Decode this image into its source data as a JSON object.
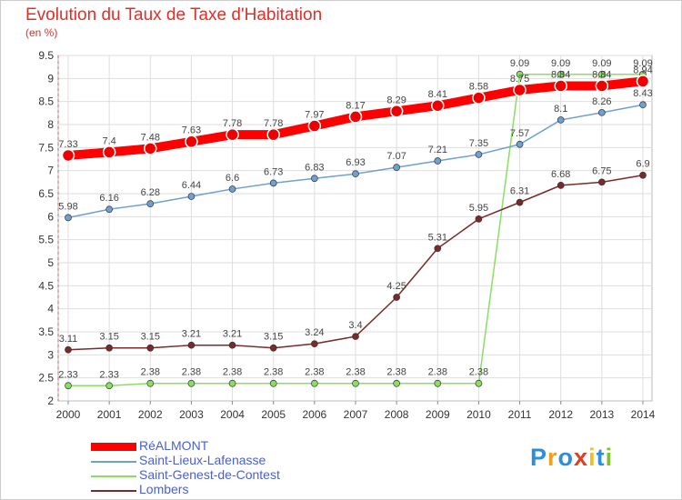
{
  "header": {
    "title": "Evolution du Taux de Taxe d'Habitation",
    "unit": "(en %)"
  },
  "logo": {
    "letters": [
      "P",
      "r",
      "o",
      "x",
      "i",
      "t",
      "i"
    ],
    "colors": [
      "#2e8fd8",
      "#f0a020",
      "#2e8fd8",
      "#e04020",
      "#f0c020",
      "#2e8fd8",
      "#80c030"
    ]
  },
  "chart_data": {
    "type": "line",
    "x": [
      "2000",
      "2001",
      "2002",
      "2003",
      "2004",
      "2005",
      "2006",
      "2007",
      "2008",
      "2009",
      "2010",
      "2011",
      "2012",
      "2013",
      "2014"
    ],
    "ylim": [
      2,
      9.5
    ],
    "yticks": [
      "2",
      "2.5",
      "3",
      "3.5",
      "4",
      "4.5",
      "5",
      "5.5",
      "6",
      "6.5",
      "7",
      "7.5",
      "8",
      "8.5",
      "9",
      "9.5"
    ],
    "grid": true,
    "legend_position": "bottom-left",
    "series": [
      {
        "name": "RéALMONT",
        "color": "#ff0000",
        "width": 10,
        "marker": 6.5,
        "values": [
          7.33,
          7.4,
          7.48,
          7.63,
          7.78,
          7.78,
          7.97,
          8.17,
          8.29,
          8.41,
          8.58,
          8.75,
          8.84,
          8.84,
          8.94
        ],
        "labels": [
          "7.33",
          "7.4",
          "7.48",
          "7.63",
          "7.78",
          "7.78",
          "7.97",
          "8.17",
          "8.29",
          "8.41",
          "8.58",
          "8.75",
          "8.84",
          "8.84",
          "8.94"
        ]
      },
      {
        "name": "Saint-Lieux-Lafenasse",
        "color": "#6fa0d0",
        "width": 1.5,
        "marker": 3.5,
        "values": [
          5.98,
          6.16,
          6.28,
          6.44,
          6.6,
          6.73,
          6.83,
          6.93,
          7.07,
          7.21,
          7.35,
          7.57,
          8.1,
          8.26,
          8.43
        ],
        "labels": [
          "5.98",
          "6.16",
          "6.28",
          "6.44",
          "6.6",
          "6.73",
          "6.83",
          "6.93",
          "7.07",
          "7.21",
          "7.35",
          "7.57",
          "8.1",
          "8.26",
          "8.43"
        ]
      },
      {
        "name": "Saint-Genest-de-Contest",
        "color": "#88e060",
        "width": 1.5,
        "marker": 3.5,
        "values": [
          2.33,
          2.33,
          2.38,
          2.38,
          2.38,
          2.38,
          2.38,
          2.38,
          2.38,
          2.38,
          2.38,
          9.09,
          9.09,
          9.09,
          9.09
        ],
        "labels": [
          "2.33",
          "2.33",
          "2.38",
          "2.38",
          "2.38",
          "2.38",
          "2.38",
          "2.38",
          "2.38",
          "2.38",
          "2.38",
          "9.09",
          "9.09",
          "9.09",
          "9.09"
        ]
      },
      {
        "name": "Lombers",
        "color": "#7a2a2a",
        "width": 1.5,
        "marker": 3.5,
        "values": [
          3.11,
          3.15,
          3.15,
          3.21,
          3.21,
          3.15,
          3.24,
          3.4,
          4.25,
          5.31,
          5.95,
          6.31,
          6.68,
          6.75,
          6.9
        ],
        "labels": [
          "3.11",
          "3.15",
          "3.15",
          "3.21",
          "3.21",
          "3.15",
          "3.24",
          "3.4",
          "4.25",
          "5.31",
          "5.95",
          "6.31",
          "6.68",
          "6.75",
          "6.9"
        ]
      }
    ]
  }
}
